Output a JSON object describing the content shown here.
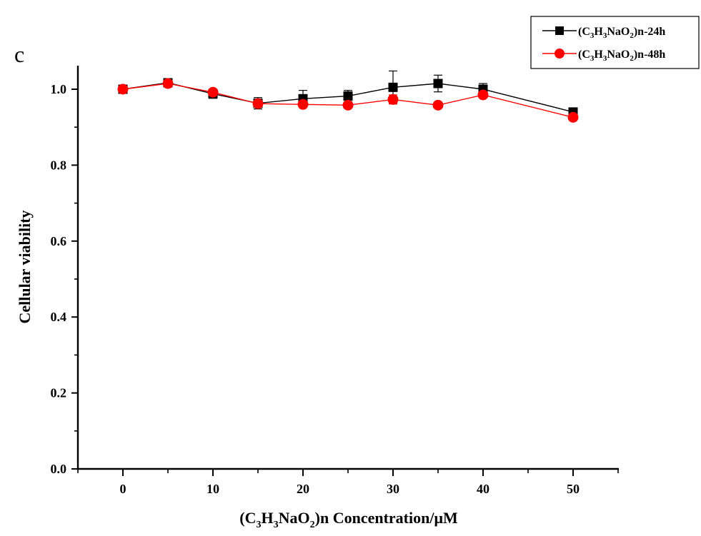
{
  "panel_label": "c",
  "chart_data": {
    "type": "line",
    "xlabel": {
      "prefix": "(C",
      "s1": "3",
      "mid1": "H",
      "s2": "3",
      "mid2": "NaO",
      "s3": "2",
      "suffix": ")n Concentration/μM"
    },
    "ylabel": "Cellular viability",
    "xlim": [
      -5,
      55
    ],
    "ylim": [
      0,
      1.06
    ],
    "xticks": [
      0,
      10,
      20,
      30,
      40,
      50
    ],
    "xtick_labels": [
      "0",
      "10",
      "20",
      "30",
      "40",
      "50"
    ],
    "yticks": [
      0.0,
      0.2,
      0.4,
      0.6,
      0.8,
      1.0
    ],
    "ytick_labels": [
      "0.0",
      "0.2",
      "0.4",
      "0.6",
      "0.8",
      "1.0"
    ],
    "grid": false,
    "legend_position": "top-right",
    "series": [
      {
        "name": "(C3H3NaO2)n-24h",
        "name_parts": {
          "prefix": "(C",
          "s1": "3",
          "mid1": "H",
          "s2": "3",
          "mid2": "NaO",
          "s3": "2",
          "suffix": ")n-24h"
        },
        "color": "#000000",
        "marker": "square",
        "x": [
          0,
          5,
          10,
          15,
          20,
          25,
          30,
          35,
          40,
          50
        ],
        "y": [
          1.0,
          1.017,
          0.988,
          0.963,
          0.975,
          0.982,
          1.005,
          1.015,
          1.0,
          0.94
        ],
        "err": [
          0.008,
          0.007,
          0.012,
          0.015,
          0.022,
          0.015,
          0.043,
          0.022,
          0.015,
          0.006
        ]
      },
      {
        "name": "(C3H3NaO2)n-48h",
        "name_parts": {
          "prefix": "(C",
          "s1": "3",
          "mid1": "H",
          "s2": "3",
          "mid2": "NaO",
          "s3": "2",
          "suffix": ")n-48h"
        },
        "color": "#ff0000",
        "marker": "circle",
        "x": [
          0,
          5,
          10,
          15,
          20,
          25,
          30,
          35,
          40,
          50
        ],
        "y": [
          1.0,
          1.015,
          0.992,
          0.962,
          0.96,
          0.958,
          0.973,
          0.958,
          0.985,
          0.926
        ],
        "err": [
          0.006,
          0.006,
          0.006,
          0.006,
          0.006,
          0.006,
          0.012,
          0.006,
          0.008,
          0.008
        ]
      }
    ]
  }
}
